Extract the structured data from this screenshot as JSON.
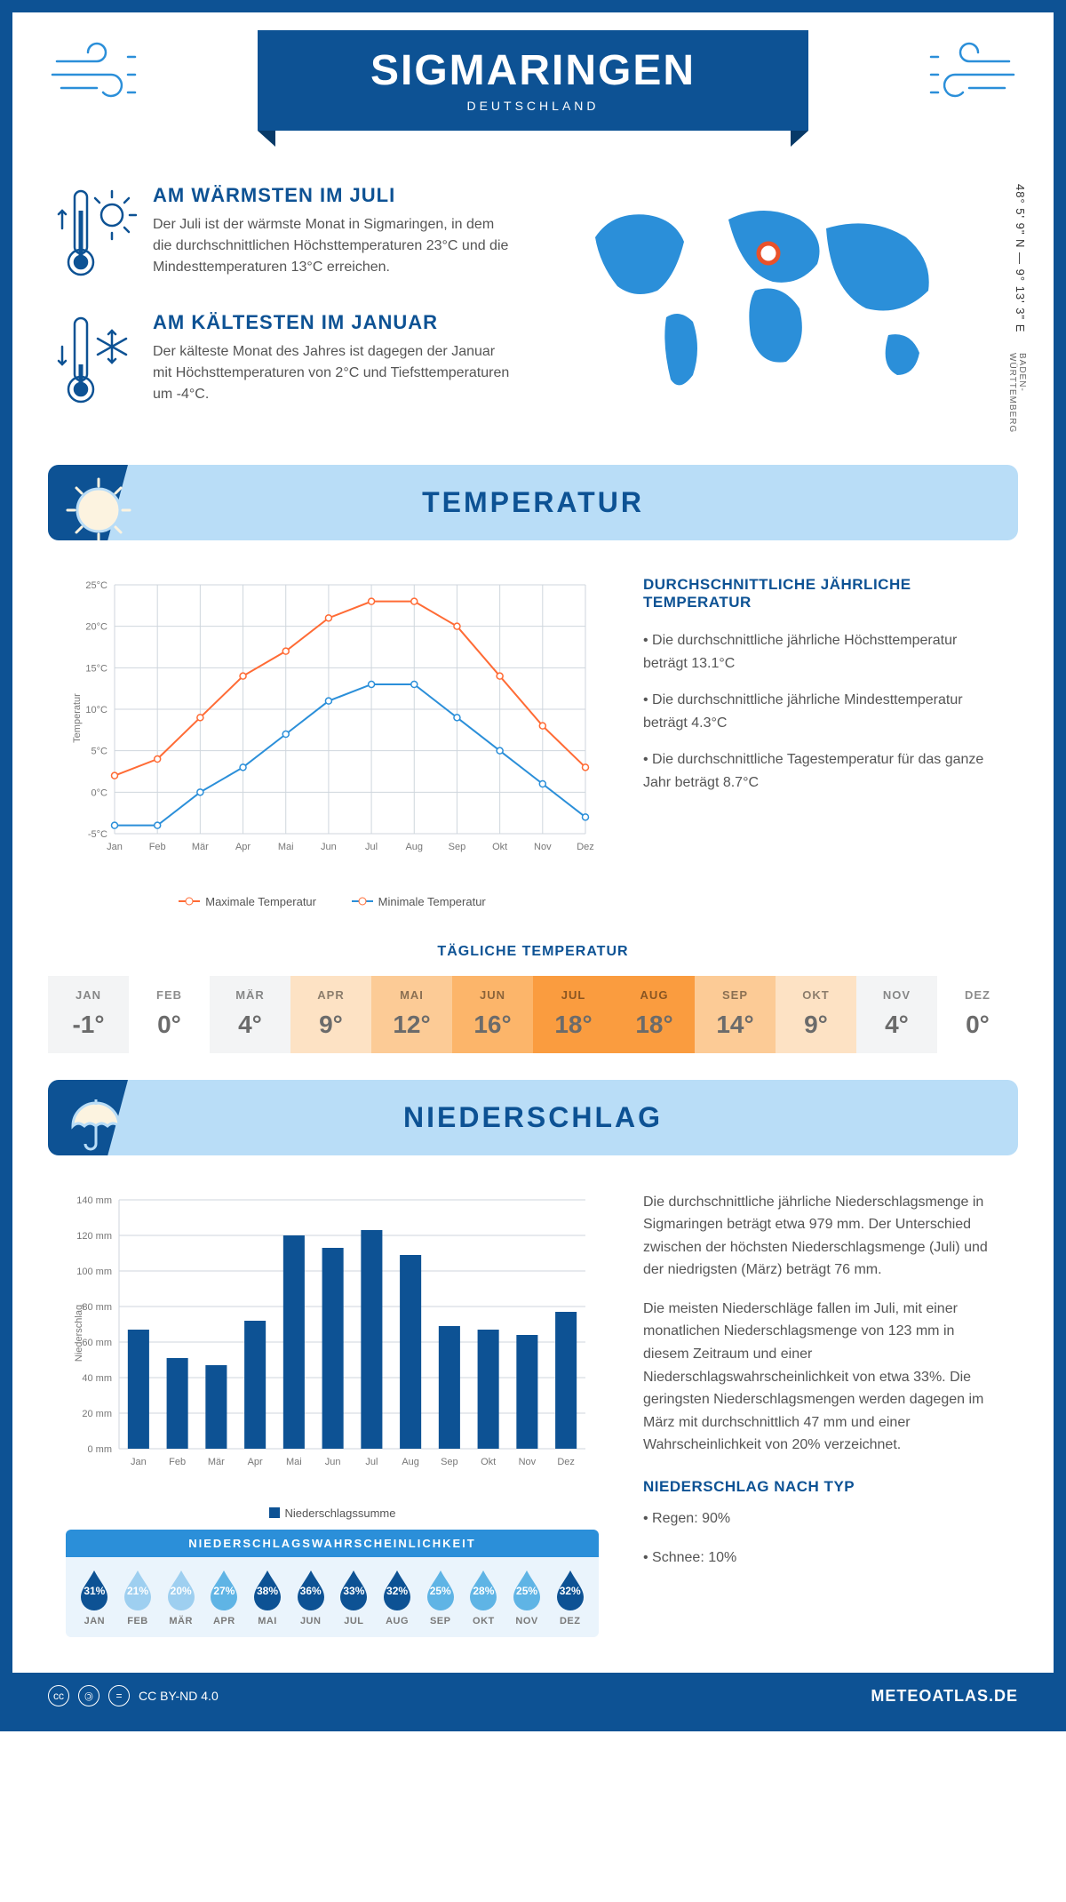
{
  "header": {
    "city": "SIGMARINGEN",
    "country": "DEUTSCHLAND",
    "coords": "48° 5' 9\" N — 9° 13' 3\" E",
    "region": "BADEN-WÜRTTEMBERG"
  },
  "warmest": {
    "title": "AM WÄRMSTEN IM JULI",
    "text": "Der Juli ist der wärmste Monat in Sigmaringen, in dem die durchschnittlichen Höchsttemperaturen 23°C und die Mindesttemperaturen 13°C erreichen."
  },
  "coldest": {
    "title": "AM KÄLTESTEN IM JANUAR",
    "text": "Der kälteste Monat des Jahres ist dagegen der Januar mit Höchsttemperaturen von 2°C und Tiefsttemperaturen um -4°C."
  },
  "temp_section": {
    "title": "TEMPERATUR",
    "info_title": "DURCHSCHNITTLICHE JÄHRLICHE TEMPERATUR",
    "bullet1": "• Die durchschnittliche jährliche Höchsttemperatur beträgt 13.1°C",
    "bullet2": "• Die durchschnittliche jährliche Mindesttemperatur beträgt 4.3°C",
    "bullet3": "• Die durchschnittliche Tagestemperatur für das ganze Jahr beträgt 8.7°C",
    "daily_title": "TÄGLICHE TEMPERATUR",
    "legend_max": "Maximale Temperatur",
    "legend_min": "Minimale Temperatur"
  },
  "temp_chart": {
    "type": "line",
    "months": [
      "Jan",
      "Feb",
      "Mär",
      "Apr",
      "Mai",
      "Jun",
      "Jul",
      "Aug",
      "Sep",
      "Okt",
      "Nov",
      "Dez"
    ],
    "max_series": {
      "values": [
        2,
        4,
        9,
        14,
        17,
        21,
        23,
        23,
        20,
        14,
        8,
        3
      ],
      "color": "#ff6b35"
    },
    "min_series": {
      "values": [
        -4,
        -4,
        0,
        3,
        7,
        11,
        13,
        13,
        9,
        5,
        1,
        -3
      ],
      "color": "#2b8fd9"
    },
    "ylim": [
      -5,
      25
    ],
    "ytick_step": 5,
    "ylabel": "Temperatur",
    "grid_color": "#cfd6dd",
    "background": "#ffffff",
    "marker_radius": 3.5,
    "line_width": 2
  },
  "daily_temp": {
    "months": [
      "JAN",
      "FEB",
      "MÄR",
      "APR",
      "MAI",
      "JUN",
      "JUL",
      "AUG",
      "SEP",
      "OKT",
      "NOV",
      "DEZ"
    ],
    "values": [
      "-1°",
      "0°",
      "4°",
      "9°",
      "12°",
      "16°",
      "18°",
      "18°",
      "14°",
      "9°",
      "4°",
      "0°"
    ],
    "colors": [
      "#f3f4f5",
      "#ffffff",
      "#f3f4f5",
      "#fde2c4",
      "#fccb96",
      "#fcb56a",
      "#fa9c3f",
      "#fa9c3f",
      "#fccb96",
      "#fde2c4",
      "#f3f4f5",
      "#ffffff"
    ]
  },
  "precip_section": {
    "title": "NIEDERSCHLAG",
    "para1": "Die durchschnittliche jährliche Niederschlagsmenge in Sigmaringen beträgt etwa 979 mm. Der Unterschied zwischen der höchsten Niederschlagsmenge (Juli) und der niedrigsten (März) beträgt 76 mm.",
    "para2": "Die meisten Niederschläge fallen im Juli, mit einer monatlichen Niederschlagsmenge von 123 mm in diesem Zeitraum und einer Niederschlagswahrscheinlichkeit von etwa 33%. Die geringsten Niederschlagsmengen werden dagegen im März mit durchschnittlich 47 mm und einer Wahrscheinlichkeit von 20% verzeichnet.",
    "type_title": "NIEDERSCHLAG NACH TYP",
    "type1": "• Regen: 90%",
    "type2": "• Schnee: 10%",
    "legend": "Niederschlagssumme"
  },
  "precip_chart": {
    "type": "bar",
    "months": [
      "Jan",
      "Feb",
      "Mär",
      "Apr",
      "Mai",
      "Jun",
      "Jul",
      "Aug",
      "Sep",
      "Okt",
      "Nov",
      "Dez"
    ],
    "values": [
      67,
      51,
      47,
      72,
      120,
      113,
      123,
      109,
      69,
      67,
      64,
      77
    ],
    "bar_color": "#0d5294",
    "ylim": [
      0,
      140
    ],
    "ytick_step": 20,
    "ylabel": "Niederschlag",
    "grid_color": "#cfd6dd",
    "bar_width": 0.55
  },
  "prob": {
    "title": "NIEDERSCHLAGSWAHRSCHEINLICHKEIT",
    "months": [
      "JAN",
      "FEB",
      "MÄR",
      "APR",
      "MAI",
      "JUN",
      "JUL",
      "AUG",
      "SEP",
      "OKT",
      "NOV",
      "DEZ"
    ],
    "values": [
      "31%",
      "21%",
      "20%",
      "27%",
      "38%",
      "36%",
      "33%",
      "32%",
      "25%",
      "28%",
      "25%",
      "32%"
    ],
    "colors": [
      "#0d5294",
      "#9ecff0",
      "#9ecff0",
      "#5fb4e5",
      "#0d5294",
      "#0d5294",
      "#0d5294",
      "#0d5294",
      "#5fb4e5",
      "#5fb4e5",
      "#5fb4e5",
      "#0d5294"
    ]
  },
  "footer": {
    "license": "CC BY-ND 4.0",
    "site": "METEOATLAS.DE"
  },
  "colors": {
    "primary": "#0d5294",
    "lightblue": "#b9ddf7",
    "accent": "#2b8fd9"
  }
}
